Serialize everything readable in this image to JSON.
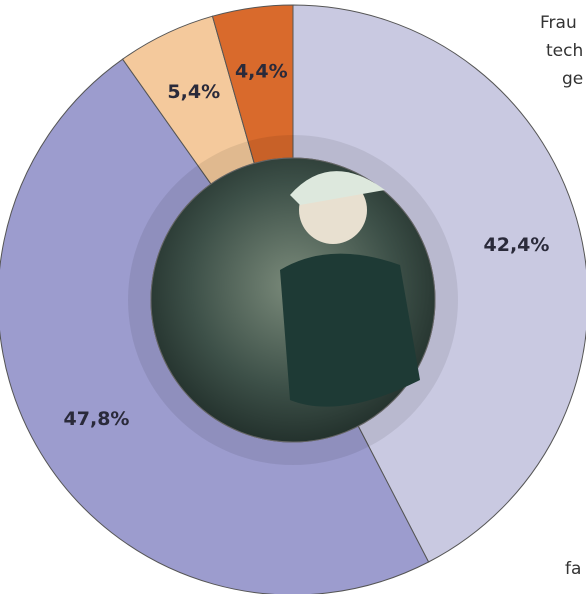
{
  "chart_data": {
    "type": "pie",
    "values": [
      42.4,
      47.8,
      5.4,
      4.4
    ],
    "value_labels": [
      "42,4%",
      "47,8%",
      "5,4%",
      "4,4%"
    ],
    "colors": [
      "#c9c9e1",
      "#9c9cce",
      "#f4c99c",
      "#d96a2c"
    ],
    "annotations": [
      "Frau",
      "tech",
      "ge",
      "fa"
    ]
  }
}
